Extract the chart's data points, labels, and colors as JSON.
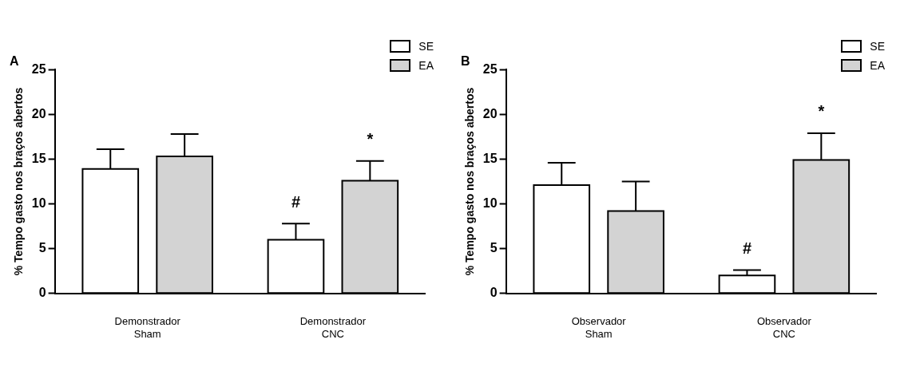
{
  "chart_data": [
    {
      "type": "bar",
      "title": "A",
      "ylabel": "% Tempo gasto nos braços abertos",
      "categories": [
        "Demonstrador\nSham",
        "Demonstrador\nCNC"
      ],
      "series": [
        {
          "name": "SE",
          "color": "#ffffff",
          "values": [
            13.9,
            6.0
          ],
          "errors": [
            [
              13.9,
              16.1
            ],
            [
              6.0,
              7.8
            ]
          ]
        },
        {
          "name": "EA",
          "color": "#d3d3d3",
          "values": [
            15.3,
            12.6
          ],
          "errors": [
            [
              15.3,
              17.8
            ],
            [
              12.6,
              14.8
            ]
          ]
        }
      ],
      "ylim": [
        0,
        25
      ],
      "yticks": [
        0,
        5,
        10,
        15,
        20,
        25
      ],
      "grid": false,
      "legend": "top right",
      "annotations": [
        "#",
        "*"
      ]
    },
    {
      "type": "bar",
      "title": "B",
      "ylabel": "% Tempo gasto nos braços abertos",
      "categories": [
        "Observador\nSham",
        "Observador\nCNC"
      ],
      "series": [
        {
          "name": "SE",
          "color": "#ffffff",
          "values": [
            12.1,
            2.0
          ],
          "errors": [
            [
              12.1,
              14.6
            ],
            [
              2.0,
              2.6
            ]
          ]
        },
        {
          "name": "EA",
          "color": "#d3d3d3",
          "values": [
            9.2,
            14.9
          ],
          "errors": [
            [
              9.2,
              12.5
            ],
            [
              14.9,
              17.9
            ]
          ]
        }
      ],
      "ylim": [
        0,
        25
      ],
      "yticks": [
        0,
        5,
        10,
        15,
        20,
        25
      ],
      "grid": false,
      "legend": "top right",
      "annotations": [
        "#",
        "*"
      ]
    }
  ]
}
